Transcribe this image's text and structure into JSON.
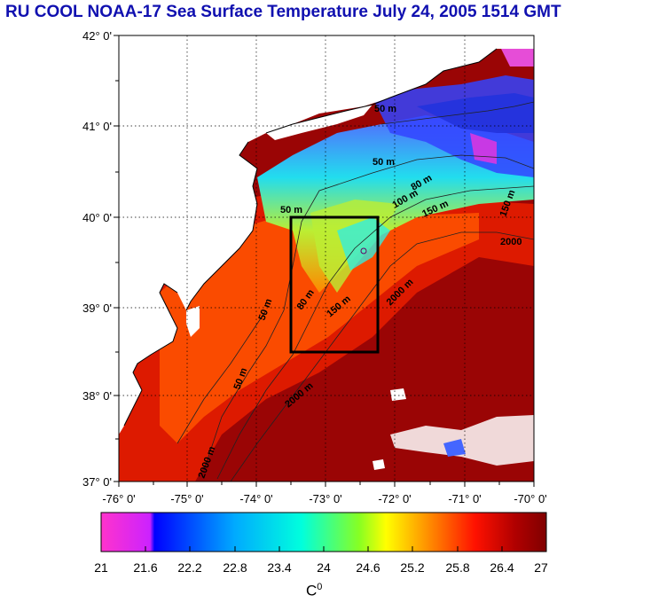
{
  "title": "RU COOL  NOAA-17 Sea Surface Temperature July 24, 2005 1514 GMT",
  "map": {
    "lon_labels": [
      "-76° 0'",
      "-75° 0'",
      "-74° 0'",
      "-73° 0'",
      "-72° 0'",
      "-71° 0'",
      "-70° 0'"
    ],
    "lat_labels": [
      "42° 0'",
      "41° 0'",
      "40° 0'",
      "39° 0'",
      "38° 0'",
      "37° 0'"
    ],
    "contour_labels": [
      "50 m",
      "50 m",
      "50 m",
      "50 m",
      "50 m",
      "80 m",
      "80 m",
      "100 m",
      "150 m",
      "150 m",
      "150 m",
      "2000",
      "2000 m",
      "2000 m",
      "2000 m"
    ],
    "colors": {
      "land": "#ffffff",
      "warm_water": "#8b0000",
      "grid": "#000000"
    }
  },
  "colorbar": {
    "ticks": [
      "21",
      "21.6",
      "22.2",
      "22.8",
      "23.4",
      "24",
      "24.6",
      "25.2",
      "25.8",
      "26.4",
      "27"
    ],
    "label_main": "C",
    "label_sup": "0",
    "stops": [
      "#ff33cc",
      "#0000ff",
      "#00aaff",
      "#00ffcc",
      "#66ff33",
      "#ffff00",
      "#ff8800",
      "#ff2200",
      "#cc0000",
      "#8b0000"
    ]
  }
}
